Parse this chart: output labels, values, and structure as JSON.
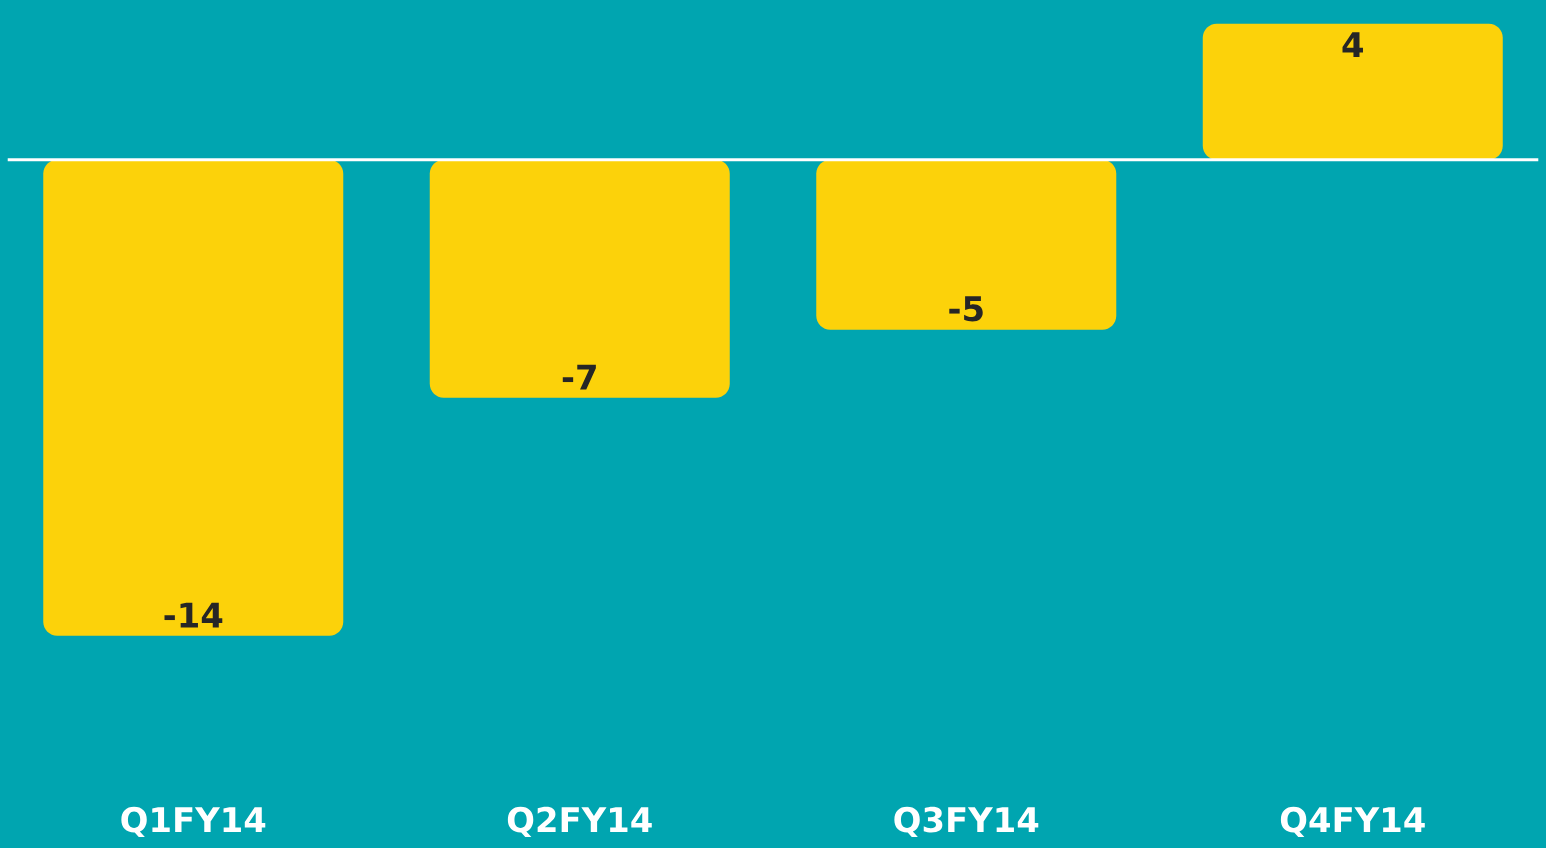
{
  "chart_data": {
    "type": "bar",
    "categories": [
      "Q1FY14",
      "Q2FY14",
      "Q3FY14",
      "Q4FY14"
    ],
    "values": [
      -14,
      -7,
      -5,
      4
    ],
    "color": "#fcd20a",
    "data_labels": true
  }
}
